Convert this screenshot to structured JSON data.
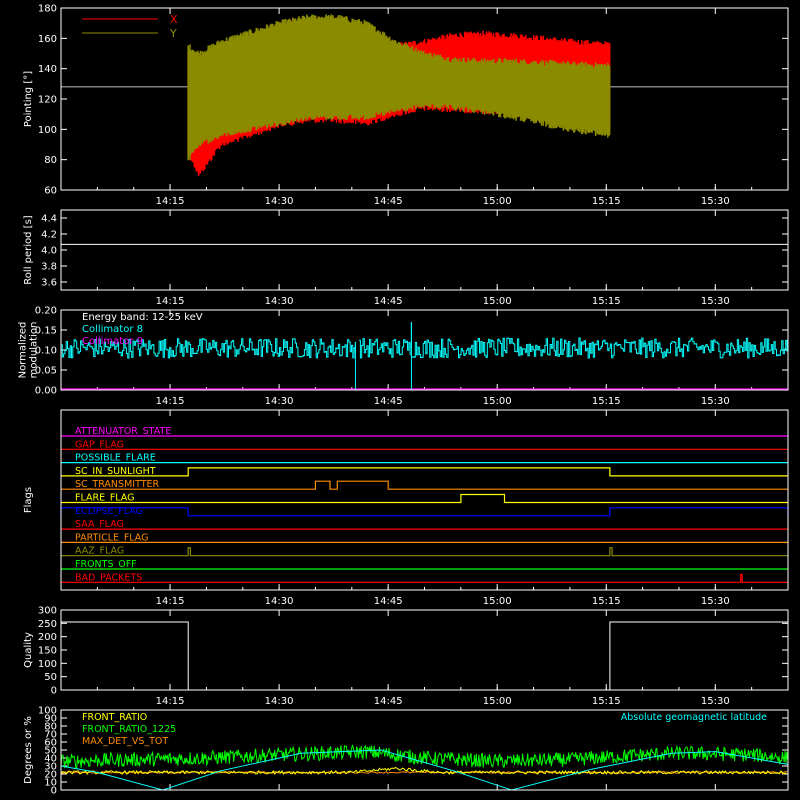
{
  "colors": {
    "background": "#000000",
    "axis": "#ffffff",
    "red": "#ff0000",
    "olive": "#8b8b00",
    "cyan": "#00ffff",
    "magenta": "#ff00ff",
    "yellow": "#ffff00",
    "green": "#00ff00",
    "orange": "#ff8c00",
    "blue": "#0000ff",
    "white": "#ffffff"
  },
  "time_axis": {
    "start_min": 0,
    "end_min": 100,
    "tick_labels": [
      "14:15",
      "14:30",
      "14:45",
      "15:00",
      "15:15",
      "15:30"
    ],
    "tick_minutes": [
      15,
      30,
      45,
      60,
      75,
      90
    ]
  },
  "chart_data": [
    {
      "id": "pointing",
      "type": "line",
      "ylabel": "Pointing [°]",
      "ylim": [
        60,
        180
      ],
      "y_ticks": [
        60,
        80,
        100,
        120,
        140,
        160,
        180
      ],
      "reference_line": 128,
      "data_start_min": 17.5,
      "data_end_min": 75.5,
      "legend": [
        {
          "name": "X",
          "color": "#ff0000"
        },
        {
          "name": "Y",
          "color": "#8b8b00"
        }
      ],
      "series": [
        {
          "name": "X",
          "color": "#ff0000",
          "x": [
            17.5,
            19,
            22,
            26,
            30,
            34,
            38,
            42,
            46,
            50,
            54,
            58,
            62,
            66,
            70,
            75.5
          ],
          "upper": [
            150,
            145,
            152,
            160,
            168,
            172,
            172,
            165,
            155,
            158,
            162,
            163,
            162,
            160,
            158,
            156
          ],
          "lower": [
            85,
            70,
            90,
            96,
            103,
            106,
            106,
            104,
            110,
            114,
            113,
            112,
            111,
            108,
            104,
            101
          ]
        },
        {
          "name": "Y",
          "color": "#8b8b00",
          "x": [
            17.5,
            19,
            22,
            26,
            30,
            34,
            38,
            42,
            46,
            50,
            54,
            58,
            62,
            66,
            70,
            75.5
          ],
          "upper": [
            155,
            150,
            158,
            164,
            170,
            174,
            174,
            170,
            158,
            150,
            146,
            145,
            145,
            144,
            143,
            142
          ],
          "lower": [
            80,
            90,
            96,
            100,
            104,
            108,
            108,
            108,
            112,
            116,
            114,
            112,
            108,
            104,
            100,
            96
          ]
        }
      ]
    },
    {
      "id": "roll",
      "type": "line",
      "ylabel": "Roll period [s]",
      "ylim": [
        3.5,
        4.5
      ],
      "y_ticks": [
        3.6,
        3.8,
        4.0,
        4.2,
        4.4
      ],
      "y_tick_labels": [
        "3.6",
        "3.8",
        "4.0",
        "4.2",
        "4.4"
      ],
      "value": 4.07
    },
    {
      "id": "modulation",
      "type": "line",
      "ylabel_lines": [
        "Normalized",
        "modulation"
      ],
      "ylim": [
        0,
        0.2
      ],
      "y_ticks": [
        0,
        0.05,
        0.1,
        0.15,
        0.2
      ],
      "y_tick_labels": [
        "0.00",
        "0.05",
        "0.10",
        "0.15",
        "0.20"
      ],
      "annotations": [
        {
          "text": "Energy band: 12-25 keV",
          "color": "#ffffff"
        },
        {
          "text": "Collimator 8",
          "color": "#00ffff"
        },
        {
          "text": "Collimator 9",
          "color": "#ff00ff"
        }
      ],
      "series": [
        {
          "name": "Collimator 8",
          "color": "#00ffff",
          "mean": 0.105,
          "segments": [
            [
              0,
              40.5
            ],
            [
              41,
              100
            ]
          ],
          "gaps_drop_to": 0,
          "gaps_at": [
            40.5,
            48.2
          ],
          "spikes": [
            [
              48.2,
              0.17
            ],
            [
              40.5,
              0.12
            ]
          ]
        },
        {
          "name": "Collimator 9",
          "color": "#ff00ff",
          "mean": 0.0
        }
      ]
    },
    {
      "id": "flags",
      "type": "table",
      "ylabel": "Flags",
      "rows": [
        {
          "name": "ATTENUATOR_STATE",
          "color": "#ff00ff",
          "steps": []
        },
        {
          "name": "GAP_FLAG",
          "color": "#ff0000",
          "steps": []
        },
        {
          "name": "POSSIBLE_FLARE",
          "color": "#00ffff",
          "steps": []
        },
        {
          "name": "SC_IN_SUNLIGHT",
          "color": "#ffff00",
          "steps": [
            [
              17.5,
              75.5
            ]
          ]
        },
        {
          "name": "SC_TRANSMITTER",
          "color": "#ff8c00",
          "steps": [
            [
              35,
              37
            ],
            [
              38,
              45
            ]
          ]
        },
        {
          "name": "FLARE_FLAG",
          "color": "#ffff00",
          "steps": [
            [
              55,
              61
            ]
          ]
        },
        {
          "name": "ECLIPSE_FLAG",
          "color": "#0000ff",
          "steps": [
            [
              0,
              17.5
            ],
            [
              75.5,
              100
            ]
          ]
        },
        {
          "name": "SAA_FLAG",
          "color": "#ff0000",
          "steps": []
        },
        {
          "name": "PARTICLE_FLAG",
          "color": "#ff8c00",
          "steps": []
        },
        {
          "name": "AAZ_FLAG",
          "color": "#8b8b00",
          "steps": [
            [
              17.5,
              17.8
            ],
            [
              75.5,
              75.8
            ]
          ]
        },
        {
          "name": "FRONTS_OFF",
          "color": "#00ff00",
          "steps": []
        },
        {
          "name": "BAD_PACKETS",
          "color": "#ff0000",
          "steps": [
            [
              93.5,
              93.7
            ]
          ]
        }
      ]
    },
    {
      "id": "quality",
      "type": "line",
      "ylabel": "Quality",
      "ylim": [
        0,
        300
      ],
      "y_ticks": [
        0,
        50,
        100,
        150,
        200,
        250,
        300
      ],
      "x": [
        0,
        17.5,
        17.5,
        75.5,
        75.5,
        100
      ],
      "y": [
        255,
        255,
        0,
        0,
        255,
        255
      ],
      "color": "#ffffff"
    },
    {
      "id": "front_ratio",
      "type": "line",
      "ylabel": "Degrees or %",
      "ylim": [
        0,
        100
      ],
      "y_ticks": [
        0,
        10,
        20,
        30,
        40,
        50,
        60,
        70,
        80,
        90,
        100
      ],
      "legend": [
        {
          "name": "FRONT_RATIO",
          "color": "#ffff00"
        },
        {
          "name": "FRONT_RATIO_1225",
          "color": "#00ff00"
        },
        {
          "name": "MAX_DET_VS_TOT",
          "color": "#ff8c00"
        }
      ],
      "right_label": {
        "text": "Absolute geomagnetic latitude",
        "color": "#00ffff"
      },
      "series": [
        {
          "name": "FRONT_RATIO_1225",
          "color": "#00ff00",
          "mean": 40,
          "x": [
            0,
            10,
            20,
            30,
            42,
            50,
            60,
            70,
            80,
            86,
            95,
            100
          ],
          "y": [
            36,
            38,
            40,
            44,
            48,
            40,
            36,
            38,
            44,
            46,
            44,
            40
          ]
        },
        {
          "name": "FRONT_RATIO",
          "color": "#ffff00",
          "mean": 21,
          "x": [
            0,
            40,
            46,
            52,
            100
          ],
          "y": [
            22,
            22,
            27,
            22,
            22
          ]
        },
        {
          "name": "MAX_DET_VS_TOT",
          "color": "#ff8c00",
          "mean": 22
        },
        {
          "name": "Absolute geomagnetic latitude",
          "color": "#00ffff",
          "x": [
            0,
            5,
            14,
            22,
            33,
            44,
            54,
            62,
            73,
            84,
            90,
            100
          ],
          "y": [
            30,
            22,
            0,
            24,
            46,
            50,
            24,
            0,
            26,
            46,
            48,
            32
          ]
        }
      ]
    }
  ]
}
